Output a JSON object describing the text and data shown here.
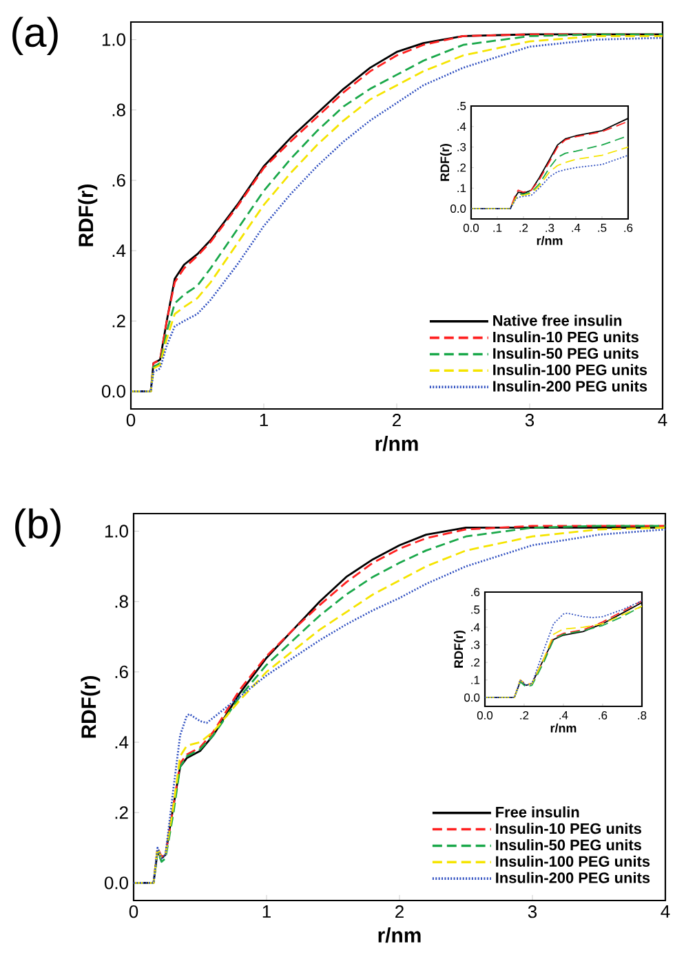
{
  "chart_data": [
    {
      "type": "line",
      "xlabel": "r/nm",
      "ylabel": "RDF(r)",
      "annotations": [
        "(a)"
      ],
      "xlim": [
        0,
        4
      ],
      "ylim": [
        -0.05,
        1.05
      ],
      "xticks": [
        0,
        1,
        2,
        3,
        4
      ],
      "yticks": [
        {
          "value": 0,
          "label": "0.0"
        },
        {
          "value": 0.2,
          "label": ".2"
        },
        {
          "value": 0.4,
          "label": ".4"
        },
        {
          "value": 0.6,
          "label": ".6"
        },
        {
          "value": 0.8,
          "label": ".8"
        },
        {
          "value": 1.0,
          "label": "1.0"
        }
      ],
      "legend": "bottom right",
      "marker": "none",
      "series": [
        {
          "name": "Native free insulin",
          "color": "#000000",
          "line_style": "solid",
          "x": [
            0,
            0.15,
            0.17,
            0.22,
            0.27,
            0.33,
            0.4,
            0.5,
            0.6,
            0.8,
            1.0,
            1.2,
            1.4,
            1.6,
            1.8,
            2.0,
            2.2,
            2.5,
            3.0,
            3.5,
            4.0
          ],
          "values": [
            0,
            0,
            0.08,
            0.09,
            0.2,
            0.32,
            0.36,
            0.39,
            0.43,
            0.53,
            0.64,
            0.72,
            0.79,
            0.86,
            0.92,
            0.965,
            0.99,
            1.01,
            1.015,
            1.015,
            1.015
          ]
        },
        {
          "name": "Insulin-10 PEG units",
          "color": "#ff2020",
          "line_style": "dashed",
          "x": [
            0,
            0.15,
            0.17,
            0.22,
            0.27,
            0.33,
            0.4,
            0.5,
            0.6,
            0.8,
            1.0,
            1.2,
            1.4,
            1.6,
            1.8,
            2.0,
            2.2,
            2.5,
            3.0,
            3.5,
            4.0
          ],
          "values": [
            0,
            0,
            0.08,
            0.09,
            0.2,
            0.31,
            0.35,
            0.385,
            0.425,
            0.525,
            0.635,
            0.71,
            0.78,
            0.85,
            0.91,
            0.955,
            0.985,
            1.01,
            1.015,
            1.015,
            1.015
          ]
        },
        {
          "name": "Insulin-50 PEG units",
          "color": "#1aa84a",
          "line_style": "dashed",
          "x": [
            0,
            0.15,
            0.17,
            0.22,
            0.27,
            0.33,
            0.4,
            0.5,
            0.6,
            0.8,
            1.0,
            1.2,
            1.4,
            1.6,
            1.8,
            2.0,
            2.2,
            2.5,
            3.0,
            3.5,
            4.0
          ],
          "values": [
            0,
            0,
            0.07,
            0.08,
            0.17,
            0.25,
            0.275,
            0.3,
            0.35,
            0.46,
            0.57,
            0.66,
            0.74,
            0.81,
            0.86,
            0.9,
            0.94,
            0.985,
            1.01,
            1.015,
            1.015
          ]
        },
        {
          "name": "Insulin-100 PEG units",
          "color": "#f5e400",
          "line_style": "dashed",
          "x": [
            0,
            0.15,
            0.17,
            0.22,
            0.27,
            0.33,
            0.4,
            0.5,
            0.6,
            0.8,
            1.0,
            1.2,
            1.4,
            1.6,
            1.8,
            2.0,
            2.2,
            2.5,
            3.0,
            3.5,
            4.0
          ],
          "values": [
            0,
            0,
            0.065,
            0.075,
            0.15,
            0.22,
            0.24,
            0.265,
            0.31,
            0.42,
            0.53,
            0.62,
            0.7,
            0.77,
            0.83,
            0.87,
            0.91,
            0.955,
            0.995,
            1.01,
            1.01
          ]
        },
        {
          "name": "Insulin-200 PEG units",
          "color": "#3050c0",
          "line_style": "dotted",
          "x": [
            0,
            0.15,
            0.17,
            0.22,
            0.27,
            0.33,
            0.4,
            0.5,
            0.6,
            0.8,
            1.0,
            1.2,
            1.4,
            1.6,
            1.8,
            2.0,
            2.2,
            2.5,
            3.0,
            3.5,
            4.0
          ],
          "values": [
            0,
            0,
            0.055,
            0.065,
            0.13,
            0.185,
            0.2,
            0.22,
            0.26,
            0.36,
            0.47,
            0.56,
            0.64,
            0.71,
            0.77,
            0.82,
            0.87,
            0.92,
            0.98,
            1.0,
            1.005
          ]
        }
      ]
    },
    {
      "type": "line",
      "xlabel": "r/nm",
      "ylabel": "RDF(r)",
      "xlim": [
        0,
        0.6
      ],
      "ylim": [
        -0.05,
        0.5
      ],
      "xticks": [
        {
          "value": 0,
          "label": "0.0"
        },
        {
          "value": 0.1,
          "label": ".1"
        },
        {
          "value": 0.2,
          "label": ".2"
        },
        {
          "value": 0.3,
          "label": ".3"
        },
        {
          "value": 0.4,
          "label": ".4"
        },
        {
          "value": 0.5,
          "label": ".5"
        },
        {
          "value": 0.6,
          "label": ".6"
        }
      ],
      "yticks": [
        {
          "value": 0,
          "label": "0.0"
        },
        {
          "value": 0.1,
          "label": ".1"
        },
        {
          "value": 0.2,
          "label": ".2"
        },
        {
          "value": 0.3,
          "label": ".3"
        },
        {
          "value": 0.4,
          "label": ".4"
        },
        {
          "value": 0.5,
          "label": ".5"
        }
      ],
      "marker": "none",
      "series": [
        {
          "color": "#000000",
          "line_style": "solid",
          "x": [
            0,
            0.15,
            0.17,
            0.18,
            0.2,
            0.23,
            0.26,
            0.3,
            0.33,
            0.36,
            0.4,
            0.5,
            0.6
          ],
          "values": [
            0,
            0,
            0.06,
            0.08,
            0.075,
            0.09,
            0.15,
            0.24,
            0.31,
            0.34,
            0.355,
            0.38,
            0.44
          ]
        },
        {
          "color": "#ff2020",
          "line_style": "dashed",
          "x": [
            0,
            0.15,
            0.17,
            0.18,
            0.2,
            0.23,
            0.26,
            0.3,
            0.33,
            0.36,
            0.4,
            0.5,
            0.6
          ],
          "values": [
            0,
            0,
            0.07,
            0.09,
            0.08,
            0.09,
            0.14,
            0.23,
            0.3,
            0.335,
            0.35,
            0.375,
            0.425
          ]
        },
        {
          "color": "#1aa84a",
          "line_style": "dashed",
          "x": [
            0,
            0.15,
            0.17,
            0.18,
            0.2,
            0.23,
            0.26,
            0.3,
            0.33,
            0.36,
            0.4,
            0.5,
            0.6
          ],
          "values": [
            0,
            0,
            0.05,
            0.07,
            0.07,
            0.08,
            0.12,
            0.2,
            0.25,
            0.27,
            0.28,
            0.31,
            0.355
          ]
        },
        {
          "color": "#f5e400",
          "line_style": "dashed",
          "x": [
            0,
            0.15,
            0.17,
            0.18,
            0.2,
            0.23,
            0.26,
            0.3,
            0.33,
            0.36,
            0.4,
            0.5,
            0.6
          ],
          "values": [
            0,
            0,
            0.05,
            0.065,
            0.065,
            0.075,
            0.11,
            0.18,
            0.21,
            0.225,
            0.24,
            0.26,
            0.3
          ]
        },
        {
          "color": "#3050c0",
          "line_style": "dotted",
          "x": [
            0,
            0.15,
            0.17,
            0.18,
            0.2,
            0.23,
            0.26,
            0.3,
            0.33,
            0.36,
            0.4,
            0.5,
            0.6
          ],
          "values": [
            0,
            0,
            0.045,
            0.055,
            0.06,
            0.065,
            0.1,
            0.155,
            0.18,
            0.19,
            0.2,
            0.215,
            0.26
          ]
        }
      ]
    },
    {
      "type": "line",
      "xlabel": "r/nm",
      "ylabel": "RDF(r)",
      "annotations": [
        "(b)"
      ],
      "xlim": [
        0,
        4
      ],
      "ylim": [
        -0.05,
        1.05
      ],
      "xticks": [
        0,
        1,
        2,
        3,
        4
      ],
      "yticks": [
        {
          "value": 0,
          "label": "0.0"
        },
        {
          "value": 0.2,
          "label": ".2"
        },
        {
          "value": 0.4,
          "label": ".4"
        },
        {
          "value": 0.6,
          "label": ".6"
        },
        {
          "value": 0.8,
          "label": ".8"
        },
        {
          "value": 1.0,
          "label": "1.0"
        }
      ],
      "legend": "bottom right",
      "marker": "none",
      "series": [
        {
          "name": "Free insulin",
          "color": "#000000",
          "line_style": "solid",
          "x": [
            0,
            0.15,
            0.18,
            0.21,
            0.24,
            0.3,
            0.35,
            0.4,
            0.5,
            0.6,
            0.8,
            1.0,
            1.2,
            1.4,
            1.6,
            1.8,
            2.0,
            2.2,
            2.5,
            3.0,
            3.5,
            4.0
          ],
          "values": [
            0,
            0,
            0.09,
            0.07,
            0.08,
            0.22,
            0.33,
            0.355,
            0.375,
            0.42,
            0.54,
            0.64,
            0.72,
            0.8,
            0.87,
            0.92,
            0.96,
            0.99,
            1.01,
            1.01,
            1.01,
            1.01
          ]
        },
        {
          "name": "Insulin-10 PEG units",
          "color": "#ff2020",
          "line_style": "dashed",
          "x": [
            0,
            0.15,
            0.18,
            0.21,
            0.24,
            0.3,
            0.35,
            0.4,
            0.5,
            0.6,
            0.8,
            1.0,
            1.2,
            1.4,
            1.6,
            1.8,
            2.0,
            2.2,
            2.5,
            3.0,
            3.5,
            4.0
          ],
          "values": [
            0,
            0,
            0.1,
            0.075,
            0.08,
            0.22,
            0.34,
            0.365,
            0.385,
            0.43,
            0.55,
            0.645,
            0.72,
            0.79,
            0.855,
            0.91,
            0.95,
            0.98,
            1.005,
            1.015,
            1.015,
            1.015
          ]
        },
        {
          "name": "Insulin-50 PEG units",
          "color": "#1aa84a",
          "line_style": "dashed",
          "x": [
            0,
            0.15,
            0.18,
            0.21,
            0.24,
            0.3,
            0.35,
            0.4,
            0.5,
            0.6,
            0.8,
            1.0,
            1.2,
            1.4,
            1.6,
            1.8,
            2.0,
            2.2,
            2.5,
            3.0,
            3.5,
            4.0
          ],
          "values": [
            0,
            0,
            0.09,
            0.06,
            0.07,
            0.2,
            0.33,
            0.36,
            0.38,
            0.42,
            0.53,
            0.62,
            0.69,
            0.76,
            0.82,
            0.87,
            0.91,
            0.945,
            0.985,
            1.01,
            1.015,
            1.015
          ]
        },
        {
          "name": "Insulin-100 PEG units",
          "color": "#f5e400",
          "line_style": "dashed",
          "x": [
            0,
            0.15,
            0.18,
            0.21,
            0.24,
            0.3,
            0.35,
            0.4,
            0.5,
            0.6,
            0.8,
            1.0,
            1.2,
            1.4,
            1.6,
            1.8,
            2.0,
            2.2,
            2.5,
            3.0,
            3.5,
            4.0
          ],
          "values": [
            0,
            0,
            0.1,
            0.07,
            0.08,
            0.22,
            0.36,
            0.39,
            0.4,
            0.43,
            0.52,
            0.6,
            0.66,
            0.72,
            0.77,
            0.82,
            0.86,
            0.9,
            0.945,
            0.985,
            1.005,
            1.01
          ]
        },
        {
          "name": "Insulin-200 PEG units",
          "color": "#3050c0",
          "line_style": "dotted",
          "x": [
            0,
            0.15,
            0.18,
            0.21,
            0.24,
            0.3,
            0.35,
            0.4,
            0.42,
            0.5,
            0.55,
            0.6,
            0.8,
            1.0,
            1.2,
            1.4,
            1.6,
            1.8,
            2.0,
            2.2,
            2.5,
            3.0,
            3.5,
            4.0
          ],
          "values": [
            0,
            0,
            0.1,
            0.07,
            0.08,
            0.27,
            0.42,
            0.475,
            0.48,
            0.46,
            0.455,
            0.47,
            0.53,
            0.59,
            0.64,
            0.69,
            0.735,
            0.775,
            0.81,
            0.85,
            0.9,
            0.96,
            0.99,
            1.005
          ]
        }
      ]
    },
    {
      "type": "line",
      "xlabel": "r/nm",
      "ylabel": "RDF(r)",
      "xlim": [
        0,
        0.8
      ],
      "ylim": [
        -0.05,
        0.6
      ],
      "xticks": [
        {
          "value": 0,
          "label": "0.0"
        },
        {
          "value": 0.2,
          "label": ".2"
        },
        {
          "value": 0.4,
          "label": ".4"
        },
        {
          "value": 0.6,
          "label": ".6"
        },
        {
          "value": 0.8,
          "label": ".8"
        }
      ],
      "yticks": [
        {
          "value": 0,
          "label": "0.0"
        },
        {
          "value": 0.1,
          "label": ".1"
        },
        {
          "value": 0.2,
          "label": ".2"
        },
        {
          "value": 0.3,
          "label": ".3"
        },
        {
          "value": 0.4,
          "label": ".4"
        },
        {
          "value": 0.5,
          "label": ".5"
        },
        {
          "value": 0.6,
          "label": ".6"
        }
      ],
      "marker": "none",
      "series": [
        {
          "color": "#000000",
          "line_style": "solid",
          "x": [
            0,
            0.15,
            0.18,
            0.21,
            0.24,
            0.3,
            0.35,
            0.4,
            0.5,
            0.6,
            0.7,
            0.8
          ],
          "values": [
            0,
            0,
            0.09,
            0.07,
            0.08,
            0.22,
            0.33,
            0.355,
            0.375,
            0.42,
            0.48,
            0.54
          ]
        },
        {
          "color": "#ff2020",
          "line_style": "dashed",
          "x": [
            0,
            0.15,
            0.18,
            0.21,
            0.24,
            0.3,
            0.35,
            0.4,
            0.5,
            0.6,
            0.7,
            0.8
          ],
          "values": [
            0,
            0,
            0.1,
            0.075,
            0.08,
            0.22,
            0.34,
            0.365,
            0.385,
            0.43,
            0.49,
            0.55
          ]
        },
        {
          "color": "#1aa84a",
          "line_style": "dashed",
          "x": [
            0,
            0.15,
            0.18,
            0.21,
            0.24,
            0.3,
            0.35,
            0.4,
            0.5,
            0.6,
            0.7,
            0.8
          ],
          "values": [
            0,
            0,
            0.09,
            0.06,
            0.07,
            0.2,
            0.33,
            0.36,
            0.38,
            0.41,
            0.46,
            0.52
          ]
        },
        {
          "color": "#f5e400",
          "line_style": "dashed",
          "x": [
            0,
            0.15,
            0.18,
            0.21,
            0.24,
            0.3,
            0.35,
            0.4,
            0.5,
            0.6,
            0.7,
            0.8
          ],
          "values": [
            0,
            0,
            0.1,
            0.07,
            0.08,
            0.22,
            0.36,
            0.39,
            0.4,
            0.42,
            0.47,
            0.52
          ]
        },
        {
          "color": "#3050c0",
          "line_style": "dotted",
          "x": [
            0,
            0.15,
            0.18,
            0.21,
            0.24,
            0.3,
            0.35,
            0.4,
            0.42,
            0.5,
            0.55,
            0.6,
            0.7,
            0.8
          ],
          "values": [
            0,
            0,
            0.1,
            0.07,
            0.08,
            0.27,
            0.42,
            0.475,
            0.48,
            0.46,
            0.455,
            0.46,
            0.5,
            0.55
          ]
        }
      ]
    }
  ]
}
